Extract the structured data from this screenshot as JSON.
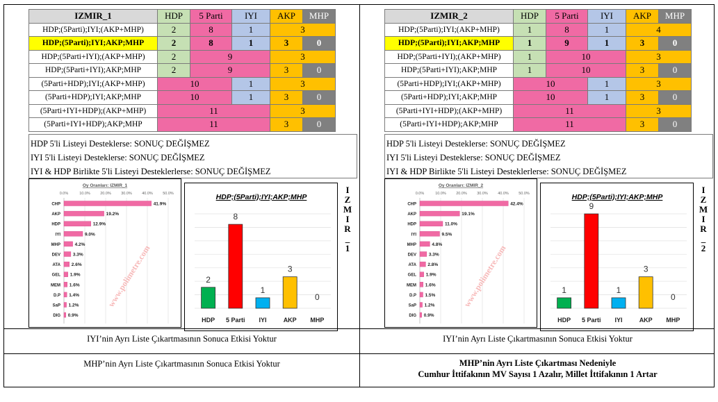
{
  "colors": {
    "hdp": "#c6e0b4",
    "five_parti": "#f06aa4",
    "iyi": "#b4c6e7",
    "akp": "#ffc000",
    "mhp": "#808080",
    "highlight": "#ffff00"
  },
  "panels": [
    {
      "title": "IZMIR_1",
      "headers": [
        "HDP",
        "5 Parti",
        "IYI",
        "AKP",
        "MHP"
      ],
      "rows": [
        {
          "label": "HDP;(5Parti);IYI;(AKP+MHP)",
          "cells": [
            {
              "v": "2",
              "c": "hdp",
              "s": 1
            },
            {
              "v": "8",
              "c": "5p",
              "s": 1
            },
            {
              "v": "1",
              "c": "iyi",
              "s": 1
            },
            {
              "v": "3",
              "c": "akp",
              "s": 2
            }
          ]
        },
        {
          "label": "HDP;(5Parti);IYI;AKP;MHP",
          "hl": true,
          "cells": [
            {
              "v": "2",
              "c": "hdp",
              "s": 1
            },
            {
              "v": "8",
              "c": "5p",
              "s": 1
            },
            {
              "v": "1",
              "c": "iyi",
              "s": 1
            },
            {
              "v": "3",
              "c": "akp",
              "s": 1
            },
            {
              "v": "0",
              "c": "mhp",
              "s": 1
            }
          ]
        },
        {
          "label": "HDP;(5Parti+IYI);(AKP+MHP)",
          "cells": [
            {
              "v": "2",
              "c": "hdp",
              "s": 1
            },
            {
              "v": "9",
              "c": "5p",
              "s": 2
            },
            {
              "v": "3",
              "c": "akp",
              "s": 2
            }
          ]
        },
        {
          "label": "HDP;(5Parti+IYI);AKP;MHP",
          "cells": [
            {
              "v": "2",
              "c": "hdp",
              "s": 1
            },
            {
              "v": "9",
              "c": "5p",
              "s": 2
            },
            {
              "v": "3",
              "c": "akp",
              "s": 1
            },
            {
              "v": "0",
              "c": "mhp",
              "s": 1
            }
          ]
        },
        {
          "label": "(5Parti+HDP);IYI;(AKP+MHP)",
          "cells": [
            {
              "v": "10",
              "c": "5p",
              "s": 2
            },
            {
              "v": "1",
              "c": "iyi",
              "s": 1
            },
            {
              "v": "3",
              "c": "akp",
              "s": 2
            }
          ]
        },
        {
          "label": "(5Parti+HDP);IYI;AKP;MHP",
          "cells": [
            {
              "v": "10",
              "c": "5p",
              "s": 2
            },
            {
              "v": "1",
              "c": "iyi",
              "s": 1
            },
            {
              "v": "3",
              "c": "akp",
              "s": 1
            },
            {
              "v": "0",
              "c": "mhp",
              "s": 1
            }
          ]
        },
        {
          "label": "(5Parti+IYI+HDP);(AKP+MHP)",
          "cells": [
            {
              "v": "11",
              "c": "5p",
              "s": 3
            },
            {
              "v": "3",
              "c": "akp",
              "s": 2
            }
          ]
        },
        {
          "label": "(5Parti+IYI+HDP);AKP;MHP",
          "cells": [
            {
              "v": "11",
              "c": "5p",
              "s": 3
            },
            {
              "v": "3",
              "c": "akp",
              "s": 1
            },
            {
              "v": "0",
              "c": "mhp",
              "s": 1
            }
          ]
        }
      ],
      "notes": [
        "HDP 5'li Listeyi Desteklerse: SONUÇ DEĞİŞMEZ",
        "IYI 5'li Listeyi Desteklerse: SONUÇ DEĞİŞMEZ",
        "IYI & HDP Birlikte 5'li Listeyi Desteklerlerse: SONUÇ DEĞİŞMEZ"
      ],
      "vote_chart": {
        "title": "Oy Oranları: IZMIR_1",
        "ticks": [
          "0.0%",
          "10.0%",
          "20.0%",
          "30.0%",
          "40.0%",
          "50.0%"
        ],
        "watermark": "www.polimetre.com",
        "parties": [
          "CHP",
          "AKP",
          "HDP",
          "IYI",
          "MHP",
          "DEV",
          "ATA",
          "GEL",
          "MEM",
          "D.P",
          "SaP",
          "DIG"
        ],
        "values": [
          41.9,
          19.2,
          12.9,
          9.0,
          4.2,
          3.3,
          2.6,
          1.9,
          1.6,
          1.4,
          1.2,
          0.9
        ],
        "labels": [
          "41.9%",
          "19.2%",
          "12.9%",
          "9.0%",
          "4.2%",
          "3.3%",
          "2.6%",
          "1.9%",
          "1.6%",
          "1.4%",
          "1.2%",
          "0.9%"
        ]
      },
      "seat_chart": {
        "title": "HDP;(5Parti);IYI;AKP;MHP",
        "categories": [
          "HDP",
          "5 Parti",
          "IYI",
          "AKP",
          "MHP"
        ],
        "values": [
          2,
          8,
          1,
          3,
          0
        ],
        "colors": [
          "#00b050",
          "#ff0000",
          "#00b0f0",
          "#ffc000",
          "#808080"
        ],
        "ymax": 9
      },
      "side_title": "IZMIR_1",
      "footer1": "IYI’nin Ayrı Liste Çıkartmasının Sonuca Etkisi Yoktur",
      "footer2_lines": [
        "MHP’nin Ayrı Liste Çıkartmasının Sonuca Etkisi Yoktur"
      ]
    },
    {
      "title": "IZMIR_2",
      "headers": [
        "HDP",
        "5 Parti",
        "IYI",
        "AKP",
        "MHP"
      ],
      "rows": [
        {
          "label": "HDP;(5Parti);IYI;(AKP+MHP)",
          "cells": [
            {
              "v": "1",
              "c": "hdp",
              "s": 1
            },
            {
              "v": "8",
              "c": "5p",
              "s": 1
            },
            {
              "v": "1",
              "c": "iyi",
              "s": 1
            },
            {
              "v": "4",
              "c": "akp",
              "s": 2
            }
          ]
        },
        {
          "label": "HDP;(5Parti);IYI;AKP;MHP",
          "hl": true,
          "cells": [
            {
              "v": "1",
              "c": "hdp",
              "s": 1
            },
            {
              "v": "9",
              "c": "5p",
              "s": 1
            },
            {
              "v": "1",
              "c": "iyi",
              "s": 1
            },
            {
              "v": "3",
              "c": "akp",
              "s": 1
            },
            {
              "v": "0",
              "c": "mhp",
              "s": 1
            }
          ]
        },
        {
          "label": "HDP;(5Parti+IYI);(AKP+MHP)",
          "cells": [
            {
              "v": "1",
              "c": "hdp",
              "s": 1
            },
            {
              "v": "10",
              "c": "5p",
              "s": 2
            },
            {
              "v": "3",
              "c": "akp",
              "s": 2
            }
          ]
        },
        {
          "label": "HDP;(5Parti+IYI);AKP;MHP",
          "cells": [
            {
              "v": "1",
              "c": "hdp",
              "s": 1
            },
            {
              "v": "10",
              "c": "5p",
              "s": 2
            },
            {
              "v": "3",
              "c": "akp",
              "s": 1
            },
            {
              "v": "0",
              "c": "mhp",
              "s": 1
            }
          ]
        },
        {
          "label": "(5Parti+HDP);IYI;(AKP+MHP)",
          "cells": [
            {
              "v": "10",
              "c": "5p",
              "s": 2
            },
            {
              "v": "1",
              "c": "iyi",
              "s": 1
            },
            {
              "v": "3",
              "c": "akp",
              "s": 2
            }
          ]
        },
        {
          "label": "(5Parti+HDP);IYI;AKP;MHP",
          "cells": [
            {
              "v": "10",
              "c": "5p",
              "s": 2
            },
            {
              "v": "1",
              "c": "iyi",
              "s": 1
            },
            {
              "v": "3",
              "c": "akp",
              "s": 1
            },
            {
              "v": "0",
              "c": "mhp",
              "s": 1
            }
          ]
        },
        {
          "label": "(5Parti+IYI+HDP);(AKP+MHP)",
          "cells": [
            {
              "v": "11",
              "c": "5p",
              "s": 3
            },
            {
              "v": "3",
              "c": "akp",
              "s": 2
            }
          ]
        },
        {
          "label": "(5Parti+IYI+HDP);AKP;MHP",
          "cells": [
            {
              "v": "11",
              "c": "5p",
              "s": 3
            },
            {
              "v": "3",
              "c": "akp",
              "s": 1
            },
            {
              "v": "0",
              "c": "mhp",
              "s": 1
            }
          ]
        }
      ],
      "notes": [
        "HDP 5'li Listeyi Desteklerse: SONUÇ DEĞİŞMEZ",
        "IYI 5'li Listeyi Desteklerse: SONUÇ DEĞİŞMEZ",
        "IYI & HDP Birlikte 5'li Listeyi Desteklerlerse: SONUÇ DEĞİŞMEZ"
      ],
      "vote_chart": {
        "title": "Oy Oranları: IZMIR_2",
        "ticks": [
          "0.0%",
          "10.0%",
          "20.0%",
          "30.0%",
          "40.0%",
          "50.0%"
        ],
        "watermark": "www.polimetre.com",
        "parties": [
          "CHP",
          "AKP",
          "HDP",
          "IYI",
          "MHP",
          "DEV",
          "ATA",
          "GEL",
          "MEM",
          "D.P",
          "SaP",
          "DIG"
        ],
        "values": [
          42.4,
          19.1,
          11.0,
          9.5,
          4.8,
          3.3,
          2.8,
          1.9,
          1.6,
          1.5,
          1.2,
          0.9
        ],
        "labels": [
          "42.4%",
          "19.1%",
          "11.0%",
          "9.5%",
          "4.8%",
          "3.3%",
          "2.8%",
          "1.9%",
          "1.6%",
          "1.5%",
          "1.2%",
          "0.9%"
        ]
      },
      "seat_chart": {
        "title": "HDP;(5Parti);IYI;AKP;MHP",
        "categories": [
          "HDP",
          "5 Parti",
          "IYI",
          "AKP",
          "MHP"
        ],
        "values": [
          1,
          9,
          1,
          3,
          0
        ],
        "colors": [
          "#00b050",
          "#ff0000",
          "#00b0f0",
          "#ffc000",
          "#808080"
        ],
        "ymax": 9
      },
      "side_title": "IZMIR_2",
      "footer1": "IYI’nin Ayrı Liste Çıkartmasının Sonuca Etkisi Yoktur",
      "footer2_lines": [
        "MHP’nin Ayrı Liste Çıkartması Nedeniyle",
        "Cumhur İttifakının MV Sayısı 1 Azalır, Millet İttifakının 1 Artar"
      ],
      "footer2_bold": true
    }
  ]
}
